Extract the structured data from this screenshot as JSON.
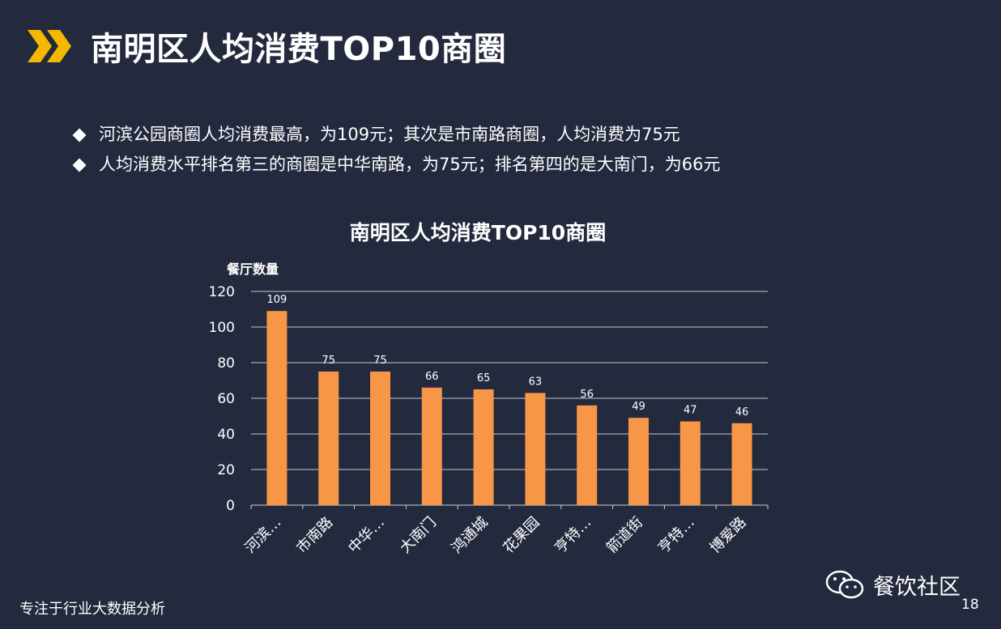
{
  "slide": {
    "title": "南明区人均消费TOP10商圈",
    "bullets": [
      "河滨公园商圈人均消费最高，为109元；其次是市南路商圈，人均消费为75元",
      "人均消费水平排名第三的商圈是中华南路，为75元；排名第四的是大南门，为66元"
    ],
    "footer": "专注于行业大数据分析",
    "brand": "餐饮社区",
    "page_number": "18",
    "accent_color": "#f5b800",
    "background_color": "#232a3e"
  },
  "chart_data": {
    "type": "bar",
    "title": "南明区人均消费TOP10商圈",
    "ylabel": "餐厅数量",
    "xlabel": "",
    "categories": [
      "河滨…",
      "市南路",
      "中华…",
      "大南门",
      "鸿通城",
      "花果园",
      "亨特…",
      "箭道街",
      "亨特…",
      "博爱路"
    ],
    "values": [
      109,
      75,
      75,
      66,
      65,
      63,
      56,
      49,
      47,
      46
    ],
    "ylim": [
      0,
      120
    ],
    "yticks": [
      0,
      20,
      40,
      60,
      80,
      100,
      120
    ],
    "grid": true,
    "bar_color": "#f79646"
  }
}
